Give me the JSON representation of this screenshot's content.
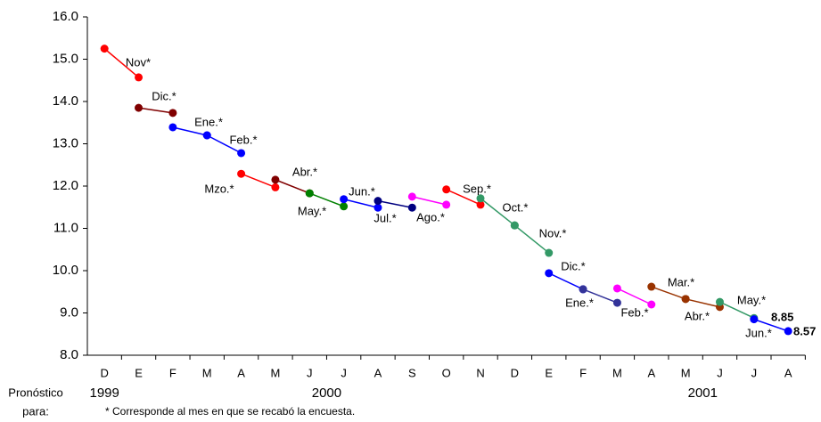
{
  "chart_data": {
    "type": "line",
    "categories": [
      "D",
      "E",
      "F",
      "M",
      "A",
      "M",
      "J",
      "J",
      "A",
      "S",
      "O",
      "N",
      "D",
      "E",
      "F",
      "M",
      "A",
      "M",
      "J",
      "J",
      "A"
    ],
    "years": [
      "1999",
      "2000",
      "2001"
    ],
    "x_label_lines": [
      "Pronóstico",
      "para:"
    ],
    "footnote": "* Corresponde al mes en que se recabó la encuesta.",
    "ylim": [
      8,
      16
    ],
    "yticks": [
      {
        "value": 8,
        "label": "8.0"
      },
      {
        "value": 9,
        "label": "9.0"
      },
      {
        "value": 10,
        "label": "10.0"
      },
      {
        "value": 11,
        "label": "11.0"
      },
      {
        "value": 12,
        "label": "12.0"
      },
      {
        "value": 13,
        "label": "13.0"
      },
      {
        "value": 14,
        "label": "14.0"
      },
      {
        "value": 15,
        "label": "15.0"
      },
      {
        "value": 16,
        "label": "16.0"
      }
    ],
    "series": [
      {
        "name": "Nov*",
        "color": "#ff0000",
        "values": [
          15.25,
          14.57,
          null,
          null,
          null,
          null,
          null,
          null,
          null,
          null,
          null,
          null,
          null,
          null,
          null,
          null,
          null,
          null,
          null,
          null,
          null
        ]
      },
      {
        "name": "Dic.*",
        "color": "#800000",
        "values": [
          null,
          13.85,
          13.73,
          null,
          null,
          null,
          null,
          null,
          null,
          null,
          null,
          null,
          null,
          null,
          null,
          null,
          null,
          null,
          null,
          null,
          null
        ]
      },
      {
        "name": "Ene.*",
        "color": "#0000ff",
        "values": [
          null,
          null,
          13.39,
          13.2,
          null,
          null,
          null,
          null,
          null,
          null,
          null,
          null,
          null,
          null,
          null,
          null,
          null,
          null,
          null,
          null,
          null
        ]
      },
      {
        "name": "Feb.*",
        "color": "#0000ff",
        "values": [
          null,
          null,
          null,
          13.2,
          12.78,
          null,
          null,
          null,
          null,
          null,
          null,
          null,
          null,
          null,
          null,
          null,
          null,
          null,
          null,
          null,
          null
        ]
      },
      {
        "name": "Mzo.*",
        "color": "#ff0000",
        "values": [
          null,
          null,
          null,
          null,
          12.29,
          11.97,
          null,
          null,
          null,
          null,
          null,
          null,
          null,
          null,
          null,
          null,
          null,
          null,
          null,
          null,
          null
        ]
      },
      {
        "name": "Abr.*",
        "color": "#800000",
        "values": [
          null,
          null,
          null,
          null,
          null,
          12.15,
          11.83,
          null,
          null,
          null,
          null,
          null,
          null,
          null,
          null,
          null,
          null,
          null,
          null,
          null,
          null
        ]
      },
      {
        "name": "May.*",
        "color": "#008000",
        "values": [
          null,
          null,
          null,
          null,
          null,
          null,
          11.83,
          11.52,
          null,
          null,
          null,
          null,
          null,
          null,
          null,
          null,
          null,
          null,
          null,
          null,
          null
        ]
      },
      {
        "name": "Jun.*",
        "color": "#0000ff",
        "values": [
          null,
          null,
          null,
          null,
          null,
          null,
          null,
          11.69,
          11.49,
          null,
          null,
          null,
          null,
          null,
          null,
          null,
          null,
          null,
          null,
          null,
          null
        ]
      },
      {
        "name": "Jul.*",
        "color": "#000080",
        "values": [
          null,
          null,
          null,
          null,
          null,
          null,
          null,
          null,
          11.65,
          11.49,
          null,
          null,
          null,
          null,
          null,
          null,
          null,
          null,
          null,
          null,
          null
        ]
      },
      {
        "name": "Ago.*",
        "color": "#ff00ff",
        "values": [
          null,
          null,
          null,
          null,
          null,
          null,
          null,
          null,
          null,
          11.75,
          11.56,
          null,
          null,
          null,
          null,
          null,
          null,
          null,
          null,
          null,
          null
        ]
      },
      {
        "name": "Sep.*",
        "color": "#ff0000",
        "values": [
          null,
          null,
          null,
          null,
          null,
          null,
          null,
          null,
          null,
          null,
          11.92,
          11.56,
          null,
          null,
          null,
          null,
          null,
          null,
          null,
          null,
          null
        ]
      },
      {
        "name": "Oct.*",
        "color": "#339966",
        "values": [
          null,
          null,
          null,
          null,
          null,
          null,
          null,
          null,
          null,
          null,
          null,
          11.71,
          11.07,
          null,
          null,
          null,
          null,
          null,
          null,
          null,
          null
        ]
      },
      {
        "name": "Nov.*",
        "color": "#339966",
        "values": [
          null,
          null,
          null,
          null,
          null,
          null,
          null,
          null,
          null,
          null,
          null,
          null,
          11.07,
          10.42,
          null,
          null,
          null,
          null,
          null,
          null,
          null
        ]
      },
      {
        "name": "Dic.*",
        "color": "#0000ff",
        "values": [
          null,
          null,
          null,
          null,
          null,
          null,
          null,
          null,
          null,
          null,
          null,
          null,
          null,
          9.94,
          9.56,
          null,
          null,
          null,
          null,
          null,
          null
        ]
      },
      {
        "name": "Ene.*",
        "color": "#333399",
        "values": [
          null,
          null,
          null,
          null,
          null,
          null,
          null,
          null,
          null,
          null,
          null,
          null,
          null,
          null,
          9.56,
          9.24,
          null,
          null,
          null,
          null,
          null
        ]
      },
      {
        "name": "Feb.*",
        "color": "#ff00ff",
        "values": [
          null,
          null,
          null,
          null,
          null,
          null,
          null,
          null,
          null,
          null,
          null,
          null,
          null,
          null,
          null,
          9.58,
          9.2,
          null,
          null,
          null,
          null
        ]
      },
      {
        "name": "Mar.*",
        "color": "#993300",
        "values": [
          null,
          null,
          null,
          null,
          null,
          null,
          null,
          null,
          null,
          null,
          null,
          null,
          null,
          null,
          null,
          null,
          9.62,
          9.33,
          null,
          null,
          null
        ]
      },
      {
        "name": "Abr.*",
        "color": "#993300",
        "values": [
          null,
          null,
          null,
          null,
          null,
          null,
          null,
          null,
          null,
          null,
          null,
          null,
          null,
          null,
          null,
          null,
          null,
          9.33,
          9.14,
          null,
          null
        ]
      },
      {
        "name": "May.*",
        "color": "#339966",
        "values": [
          null,
          null,
          null,
          null,
          null,
          null,
          null,
          null,
          null,
          null,
          null,
          null,
          null,
          null,
          null,
          null,
          null,
          null,
          9.26,
          8.88,
          null
        ]
      },
      {
        "name": "Jun.*",
        "color": "#0000ff",
        "show_values": true,
        "values": [
          null,
          null,
          null,
          null,
          null,
          null,
          null,
          null,
          null,
          null,
          null,
          null,
          null,
          null,
          null,
          null,
          null,
          null,
          null,
          8.85,
          8.57
        ]
      }
    ]
  }
}
